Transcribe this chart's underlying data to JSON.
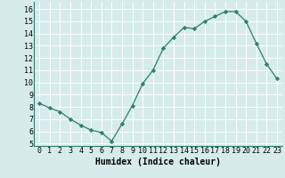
{
  "x": [
    0,
    1,
    2,
    3,
    4,
    5,
    6,
    7,
    8,
    9,
    10,
    11,
    12,
    13,
    14,
    15,
    16,
    17,
    18,
    19,
    20,
    21,
    22,
    23
  ],
  "y": [
    8.3,
    7.9,
    7.6,
    7.0,
    6.5,
    6.1,
    5.9,
    5.2,
    6.6,
    8.1,
    9.9,
    11.0,
    12.8,
    13.7,
    14.5,
    14.4,
    15.0,
    15.4,
    15.8,
    15.8,
    15.0,
    13.2,
    11.5,
    10.3
  ],
  "line_color": "#2e7d6e",
  "marker": "D",
  "marker_size": 2.2,
  "bg_color": "#d6ecea",
  "grid_color": "#ffffff",
  "xlabel": "Humidex (Indice chaleur)",
  "xlim": [
    -0.5,
    23.5
  ],
  "ylim": [
    4.8,
    16.6
  ],
  "yticks": [
    5,
    6,
    7,
    8,
    9,
    10,
    11,
    12,
    13,
    14,
    15,
    16
  ],
  "xticks": [
    0,
    1,
    2,
    3,
    4,
    5,
    6,
    7,
    8,
    9,
    10,
    11,
    12,
    13,
    14,
    15,
    16,
    17,
    18,
    19,
    20,
    21,
    22,
    23
  ],
  "xlabel_fontsize": 7,
  "tick_fontsize": 6
}
